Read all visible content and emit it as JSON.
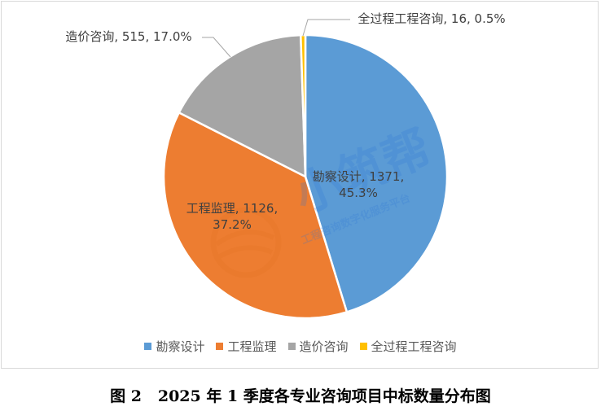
{
  "chart_data": {
    "type": "pie",
    "title": "图 2   2025 年 1 季度各专业咨询项目中标数量分布图",
    "slices": [
      {
        "name": "勘察设计",
        "value": 1371,
        "percent": "45.3%",
        "color": "#5b9bd5",
        "label_line1": "勘察设计, 1371,",
        "label_line2": "45.3%"
      },
      {
        "name": "工程监理",
        "value": 1126,
        "percent": "37.2%",
        "color": "#ed7d31",
        "label_line1": "工程监理, 1126,",
        "label_line2": "37.2%"
      },
      {
        "name": "造价咨询",
        "value": 515,
        "percent": "17.0%",
        "color": "#a5a5a5",
        "label_line1": "造价咨询, 515, 17.0%",
        "label_line2": ""
      },
      {
        "name": "全过程工程咨询",
        "value": 16,
        "percent": "0.5%",
        "color": "#ffc000",
        "label_line1": "全过程工程咨询, 16, 0.5%",
        "label_line2": ""
      }
    ],
    "legend_position": "bottom",
    "watermark_text": [
      "小筑帮",
      "工程咨询数字化服务平台"
    ]
  }
}
